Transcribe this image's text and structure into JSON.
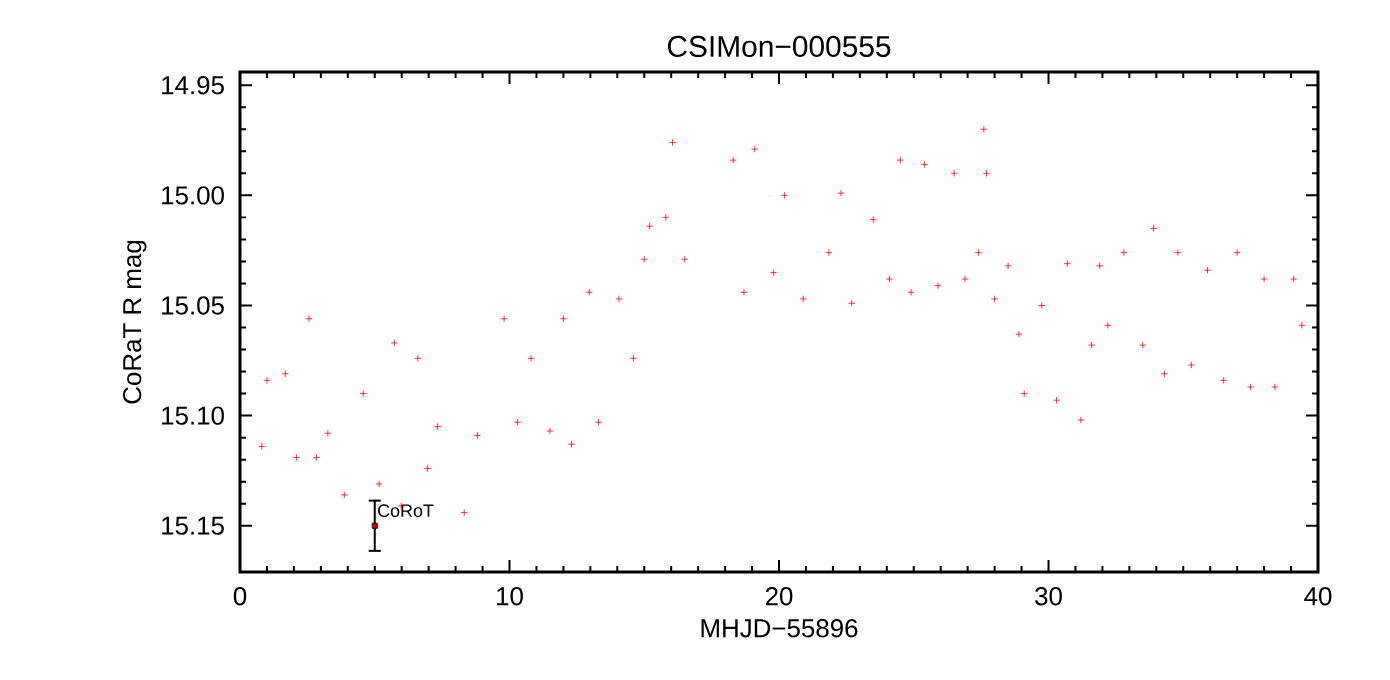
{
  "chart_data": {
    "type": "scatter",
    "title": "CSIMon−000555",
    "xlabel": "MHJD−55896",
    "ylabel": "CoRaT R mag",
    "xlim": [
      0,
      40
    ],
    "xticks": [
      0,
      10,
      20,
      30,
      40
    ],
    "ylim": [
      15.171,
      14.944
    ],
    "yticks": [
      {
        "value": 14.95,
        "label": "14.95"
      },
      {
        "value": 15.0,
        "label": "15.00"
      },
      {
        "value": 15.05,
        "label": "15.05"
      },
      {
        "value": 15.1,
        "label": "15.10"
      },
      {
        "value": 15.15,
        "label": "15.15"
      }
    ],
    "marker": "cross",
    "legend": false,
    "grid": false,
    "series": [
      {
        "color": "#ff0000",
        "x": [
          0.81,
          1.0,
          1.68,
          2.1,
          2.56,
          2.84,
          3.26,
          3.87,
          4.57,
          5.16,
          5.73,
          5.98,
          6.6,
          6.96,
          7.33,
          8.32,
          8.81,
          9.8,
          10.3,
          10.8,
          11.5,
          12.0,
          12.3,
          12.96,
          13.3,
          14.06,
          14.6,
          15.0,
          15.2,
          15.8,
          16.05,
          16.5,
          18.3,
          18.7,
          19.1,
          19.8,
          20.2,
          20.9,
          21.85,
          22.3,
          22.7,
          23.5,
          24.1,
          24.5,
          24.9,
          25.4,
          25.9,
          26.5,
          26.9,
          27.4,
          27.6,
          27.7,
          28.0,
          28.5,
          28.9,
          29.1,
          29.75,
          30.3,
          30.7,
          31.2,
          31.6,
          31.9,
          32.2,
          32.8,
          33.5,
          33.9,
          34.3,
          34.8,
          35.3,
          35.9,
          36.5,
          37.0,
          37.5,
          38.0,
          38.4,
          39.1,
          39.4
        ],
        "values": [
          15.114,
          15.084,
          15.081,
          15.119,
          15.056,
          15.119,
          15.108,
          15.136,
          15.09,
          15.131,
          15.067,
          15.141,
          15.074,
          15.124,
          15.105,
          15.144,
          15.109,
          15.056,
          15.103,
          15.074,
          15.107,
          15.056,
          15.113,
          15.044,
          15.103,
          15.047,
          15.074,
          15.029,
          15.014,
          15.01,
          14.976,
          15.029,
          14.984,
          15.044,
          14.979,
          15.035,
          15.0,
          15.047,
          15.026,
          14.999,
          15.049,
          15.011,
          15.038,
          14.984,
          15.044,
          14.986,
          15.041,
          14.99,
          15.038,
          15.026,
          14.97,
          14.99,
          15.047,
          15.032,
          15.063,
          15.09,
          15.05,
          15.093,
          15.031,
          15.102,
          15.068,
          15.032,
          15.059,
          15.026,
          15.068,
          15.015,
          15.081,
          15.026,
          15.077,
          15.034,
          15.084,
          15.026,
          15.087,
          15.038,
          15.087,
          15.038,
          15.059
        ]
      },
      {
        "name": "CoRoT",
        "color": "#000000",
        "marker": "square",
        "x": [
          5
        ],
        "values": [
          15.15
        ],
        "errors": [
          0.0114
        ]
      }
    ]
  }
}
